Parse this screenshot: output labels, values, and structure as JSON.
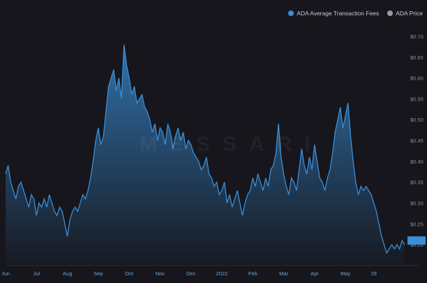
{
  "chart_data": {
    "type": "area",
    "title": "",
    "xlabel": "",
    "ylabel": "",
    "legend_position": "top-right",
    "watermark": "MESSARI",
    "colors": {
      "fees": "#3a8fd8",
      "price": "#9a9aa2",
      "background": "#16161c"
    },
    "series": [
      {
        "name": "ADA Average Transaction Fees",
        "values": [
          0.37,
          0.39,
          0.35,
          0.33,
          0.31,
          0.34,
          0.35,
          0.33,
          0.31,
          0.29,
          0.32,
          0.31,
          0.27,
          0.3,
          0.29,
          0.31,
          0.29,
          0.32,
          0.3,
          0.28,
          0.27,
          0.29,
          0.28,
          0.25,
          0.22,
          0.26,
          0.28,
          0.29,
          0.28,
          0.3,
          0.32,
          0.31,
          0.33,
          0.36,
          0.4,
          0.45,
          0.48,
          0.44,
          0.46,
          0.52,
          0.58,
          0.6,
          0.62,
          0.57,
          0.6,
          0.55,
          0.68,
          0.63,
          0.6,
          0.56,
          0.58,
          0.54,
          0.55,
          0.56,
          0.53,
          0.52,
          0.5,
          0.47,
          0.49,
          0.45,
          0.48,
          0.47,
          0.44,
          0.49,
          0.47,
          0.43,
          0.46,
          0.48,
          0.45,
          0.47,
          0.43,
          0.45,
          0.44,
          0.42,
          0.41,
          0.4,
          0.38,
          0.39,
          0.41,
          0.37,
          0.36,
          0.34,
          0.35,
          0.32,
          0.33,
          0.35,
          0.3,
          0.32,
          0.29,
          0.31,
          0.33,
          0.3,
          0.27,
          0.3,
          0.32,
          0.33,
          0.36,
          0.34,
          0.37,
          0.35,
          0.33,
          0.36,
          0.34,
          0.38,
          0.39,
          0.42,
          0.49,
          0.41,
          0.37,
          0.34,
          0.32,
          0.36,
          0.35,
          0.33,
          0.38,
          0.43,
          0.39,
          0.37,
          0.41,
          0.38,
          0.44,
          0.4,
          0.36,
          0.35,
          0.33,
          0.36,
          0.38,
          0.42,
          0.47,
          0.5,
          0.53,
          0.48,
          0.51,
          0.54,
          0.46,
          0.4,
          0.35,
          0.32,
          0.34,
          0.33,
          0.34,
          0.33,
          0.32,
          0.3,
          0.28,
          0.25,
          0.22,
          0.2,
          0.18,
          0.19,
          0.2,
          0.19,
          0.2,
          0.19,
          0.21,
          0.2
        ]
      },
      {
        "name": "ADA Price",
        "values": []
      }
    ],
    "y_axis": {
      "min": 0.15,
      "max": 0.72,
      "position": "right",
      "ticks": [
        "$0.70",
        "$0.65",
        "$0.60",
        "$0.55",
        "$0.50",
        "$0.45",
        "$0.40",
        "$0.35",
        "$0.30",
        "$0.25",
        "$0.20"
      ],
      "tick_values": [
        0.7,
        0.65,
        0.6,
        0.55,
        0.5,
        0.45,
        0.4,
        0.35,
        0.3,
        0.25,
        0.2
      ],
      "current_value": 0.21
    },
    "x_axis": {
      "ticks": [
        "Jun",
        "Jul",
        "Aug",
        "Sep",
        "Oct",
        "Nov",
        "Dec",
        "2022",
        "Feb",
        "Mar",
        "Apr",
        "May",
        "29"
      ],
      "tick_index": [
        0,
        12,
        24,
        36,
        48,
        60,
        72,
        84,
        96,
        108,
        120,
        132,
        143
      ]
    },
    "grid": false
  }
}
